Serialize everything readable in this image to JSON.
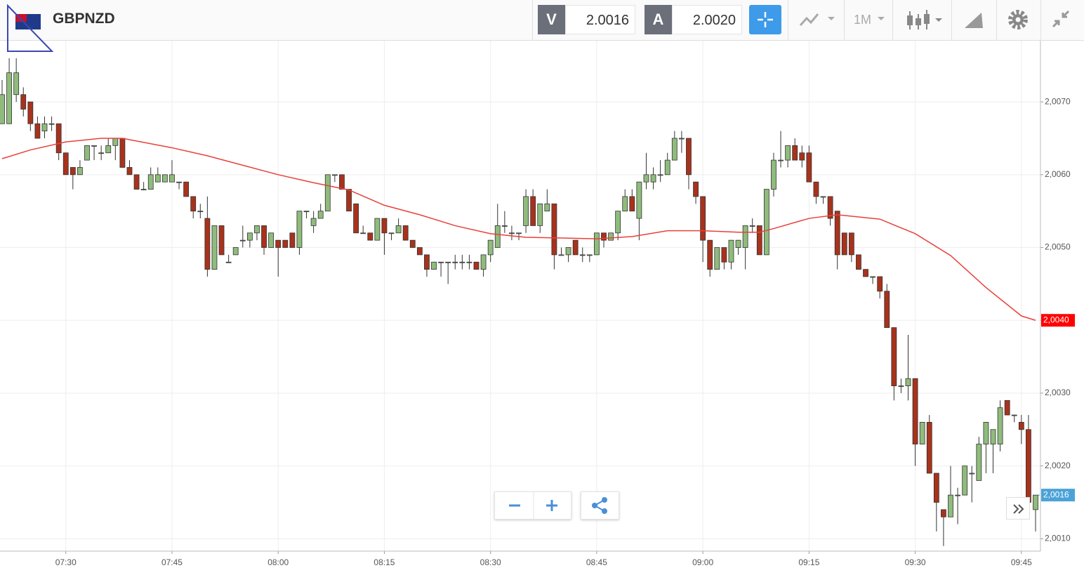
{
  "toolbar": {
    "symbol": "GBPNZD",
    "bid_label": "V",
    "bid": "2.0016",
    "ask_label": "A",
    "ask": "2.0020",
    "timeframe": "1M"
  },
  "chart_data": {
    "type": "candlestick",
    "up_color": "#8fbc7c",
    "down_color": "#a8321c",
    "x": [
      "07:21",
      "07:22",
      "07:23",
      "07:24",
      "07:25",
      "07:26",
      "07:27",
      "07:28",
      "07:29",
      "07:30",
      "07:31",
      "07:32",
      "07:33",
      "07:34",
      "07:35",
      "07:36",
      "07:37",
      "07:38",
      "07:39",
      "07:40",
      "07:41",
      "07:42",
      "07:43",
      "07:44",
      "07:45",
      "07:46",
      "07:47",
      "07:48",
      "07:49",
      "07:50",
      "07:51",
      "07:52",
      "07:53",
      "07:54",
      "07:55",
      "07:56",
      "07:57",
      "07:58",
      "07:59",
      "08:00",
      "08:01",
      "08:02",
      "08:03",
      "08:04",
      "08:05",
      "08:06",
      "08:07",
      "08:08",
      "08:09",
      "08:10",
      "08:11",
      "08:12",
      "08:13",
      "08:14",
      "08:15",
      "08:16",
      "08:17",
      "08:18",
      "08:19",
      "08:20",
      "08:21",
      "08:22",
      "08:23",
      "08:24",
      "08:25",
      "08:26",
      "08:27",
      "08:28",
      "08:29",
      "08:30",
      "08:31",
      "08:32",
      "08:33",
      "08:34",
      "08:35",
      "08:36",
      "08:37",
      "08:38",
      "08:39",
      "08:40",
      "08:41",
      "08:42",
      "08:43",
      "08:44",
      "08:45",
      "08:46",
      "08:47",
      "08:48",
      "08:49",
      "08:50",
      "08:51",
      "08:52",
      "08:53",
      "08:54",
      "08:55",
      "08:56",
      "08:57",
      "08:58",
      "08:59",
      "09:00",
      "09:01",
      "09:02",
      "09:03",
      "09:04",
      "09:05",
      "09:06",
      "09:07",
      "09:08",
      "09:09",
      "09:10",
      "09:11",
      "09:12",
      "09:13",
      "09:14",
      "09:15",
      "09:16",
      "09:17",
      "09:18",
      "09:19",
      "09:20",
      "09:21",
      "09:22",
      "09:23",
      "09:24",
      "09:25",
      "09:26",
      "09:27",
      "09:28",
      "09:29",
      "09:30",
      "09:31",
      "09:32",
      "09:33",
      "09:34",
      "09:35",
      "09:36",
      "09:37",
      "09:38",
      "09:39",
      "09:40",
      "09:41",
      "09:42",
      "09:43",
      "09:44",
      "09:45",
      "09:46",
      "09:47"
    ],
    "open": [
      2.0067,
      2.0067,
      2.0071,
      2.0071,
      2.007,
      2.0067,
      2.0066,
      2.0067,
      2.0067,
      2.0063,
      2.0061,
      2.006,
      2.0062,
      2.0064,
      2.0063,
      2.0063,
      2.0064,
      2.0065,
      2.0061,
      2.006,
      2.0058,
      2.0058,
      2.0059,
      2.0059,
      2.0059,
      2.0059,
      2.0059,
      2.0057,
      2.0055,
      2.0054,
      2.0047,
      2.0053,
      2.0048,
      2.0049,
      2.0051,
      2.0051,
      2.0052,
      2.0053,
      2.005,
      2.0051,
      2.0051,
      2.0052,
      2.005,
      2.0055,
      2.0053,
      2.0054,
      2.0055,
      2.006,
      2.006,
      2.0058,
      2.0056,
      2.0052,
      2.0052,
      2.0051,
      2.0054,
      2.0052,
      2.0052,
      2.0053,
      2.0051,
      2.005,
      2.0049,
      2.0047,
      2.0048,
      2.0048,
      2.0048,
      2.0048,
      2.0048,
      2.0048,
      2.0047,
      2.0049,
      2.005,
      2.0053,
      2.0052,
      2.0052,
      2.0053,
      2.0057,
      2.0053,
      2.0055,
      2.0056,
      2.0049,
      2.0049,
      2.0051,
      2.0049,
      2.0049,
      2.0049,
      2.0052,
      2.0051,
      2.0052,
      2.0055,
      2.0057,
      2.0054,
      2.0059,
      2.0059,
      2.006,
      2.006,
      2.0062,
      2.0065,
      2.0065,
      2.0059,
      2.0057,
      2.0051,
      2.0047,
      2.005,
      2.0048,
      2.005,
      2.005,
      2.0053,
      2.0053,
      2.0049,
      2.0058,
      2.0062,
      2.0062,
      2.0064,
      2.0063,
      2.0063,
      2.0059,
      2.0057,
      2.0057,
      2.0055,
      2.0052,
      2.0052,
      2.0049,
      2.0047,
      2.0046,
      2.0046,
      2.0044,
      2.0039,
      2.0031,
      2.0031,
      2.0032,
      2.0023,
      2.0026,
      2.0019,
      2.0014,
      2.0013,
      2.0016,
      2.0016,
      2.0019,
      2.0018,
      2.0023,
      2.0023,
      2.0023,
      2.0029,
      2.0027,
      2.0026,
      2.0025,
      2.0014
    ],
    "high": [
      2.0073,
      2.0076,
      2.0076,
      2.0072,
      2.007,
      2.0068,
      2.0068,
      2.0068,
      2.0067,
      2.0063,
      2.0061,
      2.0062,
      2.0064,
      2.0064,
      2.0064,
      2.0065,
      2.0065,
      2.0065,
      2.0062,
      2.006,
      2.0059,
      2.0061,
      2.0061,
      2.006,
      2.0062,
      2.0059,
      2.0059,
      2.0057,
      2.0056,
      2.0057,
      2.0053,
      2.0053,
      2.0049,
      2.005,
      2.0053,
      2.0052,
      2.0053,
      2.0053,
      2.0052,
      2.0051,
      2.0051,
      2.0052,
      2.0055,
      2.0055,
      2.0055,
      2.0056,
      2.006,
      2.006,
      2.006,
      2.0058,
      2.0056,
      2.0053,
      2.0052,
      2.0054,
      2.0054,
      2.0052,
      2.0054,
      2.0053,
      2.0051,
      2.005,
      2.0049,
      2.0048,
      2.0048,
      2.0048,
      2.0049,
      2.0049,
      2.0049,
      2.0048,
      2.0049,
      2.0051,
      2.0056,
      2.0055,
      2.0053,
      2.0052,
      2.0058,
      2.0058,
      2.0056,
      2.0058,
      2.0056,
      2.005,
      2.005,
      2.0051,
      2.005,
      2.0049,
      2.0052,
      2.0052,
      2.0052,
      2.0055,
      2.0058,
      2.0058,
      2.0059,
      2.0063,
      2.0061,
      2.0062,
      2.0063,
      2.0066,
      2.0066,
      2.0065,
      2.0059,
      2.0057,
      2.0051,
      2.005,
      2.005,
      2.0051,
      2.0051,
      2.0053,
      2.0054,
      2.0053,
      2.0058,
      2.0063,
      2.0066,
      2.0064,
      2.0065,
      2.0064,
      2.0064,
      2.0059,
      2.0057,
      2.0057,
      2.0055,
      2.0052,
      2.0052,
      2.0049,
      2.0047,
      2.0046,
      2.0046,
      2.0045,
      2.0039,
      2.0032,
      2.0038,
      2.0032,
      2.0026,
      2.0027,
      2.0019,
      2.0014,
      2.002,
      2.0017,
      2.002,
      2.002,
      2.0024,
      2.0026,
      2.0025,
      2.0029,
      2.0029,
      2.0027,
      2.0027,
      2.0027,
      2.0016
    ],
    "low": [
      2.0067,
      2.0067,
      2.007,
      2.0068,
      2.0066,
      2.0065,
      2.0065,
      2.0066,
      2.0062,
      2.006,
      2.0058,
      2.006,
      2.0062,
      2.0062,
      2.0062,
      2.0063,
      2.0062,
      2.0061,
      2.006,
      2.0058,
      2.0058,
      2.0058,
      2.0059,
      2.0059,
      2.0059,
      2.0058,
      2.0057,
      2.0054,
      2.0054,
      2.0046,
      2.0047,
      2.0049,
      2.0048,
      2.0049,
      2.005,
      2.005,
      2.0051,
      2.0049,
      2.005,
      2.0046,
      2.005,
      2.005,
      2.0049,
      2.0054,
      2.0052,
      2.0054,
      2.0055,
      2.0059,
      2.0058,
      2.0055,
      2.0052,
      2.0052,
      2.0051,
      2.0051,
      2.0049,
      2.0051,
      2.0052,
      2.0051,
      2.005,
      2.0049,
      2.0046,
      2.0047,
      2.0046,
      2.0045,
      2.0047,
      2.0047,
      2.0047,
      2.0047,
      2.0046,
      2.0048,
      2.005,
      2.0052,
      2.0051,
      2.0051,
      2.0052,
      2.0053,
      2.0052,
      2.0055,
      2.0047,
      2.0049,
      2.0048,
      2.0049,
      2.0048,
      2.0048,
      2.0049,
      2.005,
      2.0051,
      2.0051,
      2.0055,
      2.0055,
      2.0051,
      2.0058,
      2.0058,
      2.0059,
      2.006,
      2.0062,
      2.0063,
      2.0058,
      2.0056,
      2.0048,
      2.0046,
      2.0047,
      2.0047,
      2.0047,
      2.0049,
      2.0047,
      2.0052,
      2.0049,
      2.0049,
      2.0057,
      2.0061,
      2.0061,
      2.0062,
      2.0061,
      2.0059,
      2.0056,
      2.0056,
      2.0053,
      2.0047,
      2.0049,
      2.0048,
      2.0047,
      2.0046,
      2.0045,
      2.0043,
      2.0039,
      2.0029,
      2.003,
      2.0029,
      2.002,
      2.0023,
      2.0019,
      2.0011,
      2.0009,
      2.0013,
      2.0012,
      2.0016,
      2.0015,
      2.0018,
      2.0019,
      2.0019,
      2.0022,
      2.0027,
      2.0026,
      2.0023,
      2.0014,
      2.0011
    ],
    "close": [
      2.0071,
      2.0074,
      2.0074,
      2.0069,
      2.0067,
      2.0065,
      2.0067,
      2.0067,
      2.0063,
      2.006,
      2.006,
      2.0061,
      2.0064,
      2.0064,
      2.0063,
      2.0064,
      2.0065,
      2.0061,
      2.006,
      2.0058,
      2.0058,
      2.006,
      2.006,
      2.006,
      2.006,
      2.0059,
      2.0057,
      2.0055,
      2.0055,
      2.0047,
      2.0053,
      2.0049,
      2.0048,
      2.005,
      2.0051,
      2.0052,
      2.0053,
      2.005,
      2.0052,
      2.005,
      2.005,
      2.005,
      2.0055,
      2.0055,
      2.0054,
      2.0055,
      2.006,
      2.006,
      2.0058,
      2.0055,
      2.0052,
      2.0052,
      2.0051,
      2.0054,
      2.0052,
      2.0052,
      2.0053,
      2.0051,
      2.005,
      2.0049,
      2.0047,
      2.0048,
      2.0048,
      2.0048,
      2.0048,
      2.0048,
      2.0048,
      2.0047,
      2.0049,
      2.0051,
      2.0053,
      2.0053,
      2.0052,
      2.0052,
      2.0057,
      2.0053,
      2.0056,
      2.0056,
      2.0049,
      2.0049,
      2.005,
      2.0049,
      2.0049,
      2.0049,
      2.0052,
      2.0051,
      2.0052,
      2.0055,
      2.0057,
      2.0055,
      2.0059,
      2.006,
      2.006,
      2.006,
      2.0062,
      2.0065,
      2.0065,
      2.006,
      2.0057,
      2.0051,
      2.0047,
      2.005,
      2.0048,
      2.0051,
      2.0051,
      2.0053,
      2.0053,
      2.0049,
      2.0058,
      2.0062,
      2.0062,
      2.0064,
      2.0062,
      2.0062,
      2.0059,
      2.0057,
      2.0057,
      2.0054,
      2.0049,
      2.0049,
      2.0049,
      2.0047,
      2.0046,
      2.0046,
      2.0044,
      2.0039,
      2.0031,
      2.0031,
      2.0032,
      2.0023,
      2.0026,
      2.0019,
      2.0015,
      2.0013,
      2.0016,
      2.0016,
      2.002,
      2.0019,
      2.0023,
      2.0026,
      2.0025,
      2.0028,
      2.0027,
      2.0027,
      2.0025,
      2.0015,
      2.0016
    ],
    "last_label": "2,0016",
    "ma": {
      "color": "#e8413a",
      "tag_label": "2,0040",
      "x": [
        "07:21",
        "07:25",
        "07:30",
        "07:35",
        "07:38",
        "07:45",
        "07:50",
        "07:55",
        "08:00",
        "08:05",
        "08:10",
        "08:15",
        "08:20",
        "08:25",
        "08:30",
        "08:35",
        "08:40",
        "08:45",
        "08:50",
        "08:55",
        "09:00",
        "09:05",
        "09:08",
        "09:10",
        "09:15",
        "09:19",
        "09:25",
        "09:30",
        "09:35",
        "09:40",
        "09:45",
        "09:47"
      ],
      "values": [
        2.00622,
        2.00634,
        2.00645,
        2.0065,
        2.0065,
        2.00637,
        2.00626,
        2.00613,
        2.006,
        2.00589,
        2.00579,
        2.00558,
        2.00545,
        2.0053,
        2.00519,
        2.00514,
        2.00513,
        2.00512,
        2.00515,
        2.00523,
        2.00523,
        2.00521,
        2.00521,
        2.00526,
        2.0054,
        2.00545,
        2.00539,
        2.00519,
        2.00489,
        2.00445,
        2.00406,
        2.004
      ]
    },
    "xlim": [
      "07:21",
      "09:47"
    ],
    "xticks": [
      "07:30",
      "07:45",
      "08:00",
      "08:15",
      "08:30",
      "08:45",
      "09:00",
      "09:15",
      "09:30",
      "09:45"
    ],
    "ylim": [
      2.00083,
      2.00784
    ],
    "yticks": [
      {
        "value": 2.001,
        "label": "2,0010"
      },
      {
        "value": 2.002,
        "label": "2,0020"
      },
      {
        "value": 2.003,
        "label": "2,0030"
      },
      {
        "value": 2.004,
        "label": "2,0040"
      },
      {
        "value": 2.005,
        "label": "2,0050"
      },
      {
        "value": 2.006,
        "label": "2,0060"
      },
      {
        "value": 2.007,
        "label": "2,0070"
      }
    ],
    "grid": true
  }
}
